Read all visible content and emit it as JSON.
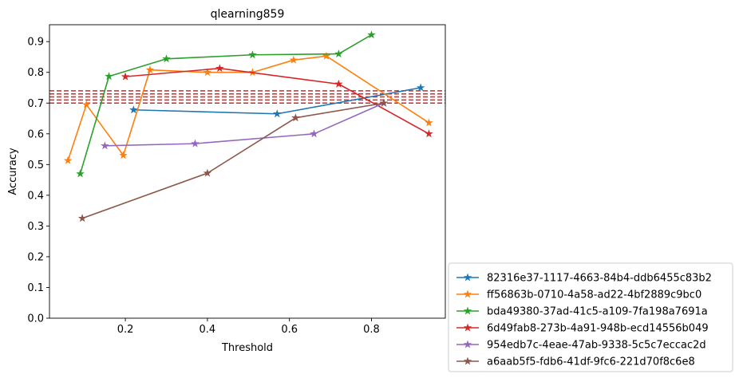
{
  "chart_data": {
    "type": "line",
    "title": "qlearning859",
    "xlabel": "Threshold",
    "ylabel": "Accuracy",
    "xlim": [
      0.015,
      0.98
    ],
    "ylim": [
      0.0,
      0.955
    ],
    "x_ticks": [
      0.2,
      0.4,
      0.6,
      0.8
    ],
    "x_tick_labels": [
      "0.2",
      "0.4",
      "0.6",
      "0.8"
    ],
    "y_ticks": [
      0.0,
      0.1,
      0.2,
      0.3,
      0.4,
      0.5,
      0.6,
      0.7,
      0.8,
      0.9
    ],
    "y_tick_labels": [
      "0.0",
      "0.1",
      "0.2",
      "0.3",
      "0.4",
      "0.5",
      "0.6",
      "0.7",
      "0.8",
      "0.9"
    ],
    "grid": false,
    "legend_position": "outside-bottom-right",
    "marker": "star",
    "reference_lines": {
      "style": "dashed",
      "color": "#d62728",
      "y": [
        0.7,
        0.71,
        0.72,
        0.73,
        0.74
      ]
    },
    "series": [
      {
        "name": "82316e37-1117-4663-84b4-ddb6455c83b2",
        "color": "#1f77b4",
        "x": [
          0.22,
          0.57,
          0.92
        ],
        "y": [
          0.678,
          0.665,
          0.75
        ]
      },
      {
        "name": "ff56863b-0710-4a58-ad22-4bf2889c9bc0",
        "color": "#ff7f0e",
        "x": [
          0.06,
          0.105,
          0.195,
          0.26,
          0.4,
          0.51,
          0.61,
          0.69,
          0.94
        ],
        "y": [
          0.513,
          0.695,
          0.53,
          0.808,
          0.8,
          0.8,
          0.84,
          0.853,
          0.636
        ]
      },
      {
        "name": "bda49380-37ad-41c5-a109-7fa198a7691a",
        "color": "#2ca02c",
        "x": [
          0.09,
          0.16,
          0.3,
          0.51,
          0.72,
          0.8
        ],
        "y": [
          0.47,
          0.787,
          0.844,
          0.857,
          0.86,
          0.922
        ]
      },
      {
        "name": "6d49fab8-273b-4a91-948b-ecd14556b049",
        "color": "#d62728",
        "x": [
          0.2,
          0.43,
          0.72,
          0.94
        ],
        "y": [
          0.786,
          0.813,
          0.762,
          0.6
        ]
      },
      {
        "name": "954edb7c-4eae-47ab-9338-5c5c7eccac2d",
        "color": "#9467bd",
        "x": [
          0.15,
          0.37,
          0.66,
          0.83
        ],
        "y": [
          0.561,
          0.568,
          0.6,
          0.7
        ]
      },
      {
        "name": "a6aab5f5-fdb6-41df-9fc6-221d70f8c6e8",
        "color": "#8c564b",
        "x": [
          0.095,
          0.4,
          0.615,
          0.83
        ],
        "y": [
          0.325,
          0.472,
          0.652,
          0.7
        ]
      }
    ]
  }
}
